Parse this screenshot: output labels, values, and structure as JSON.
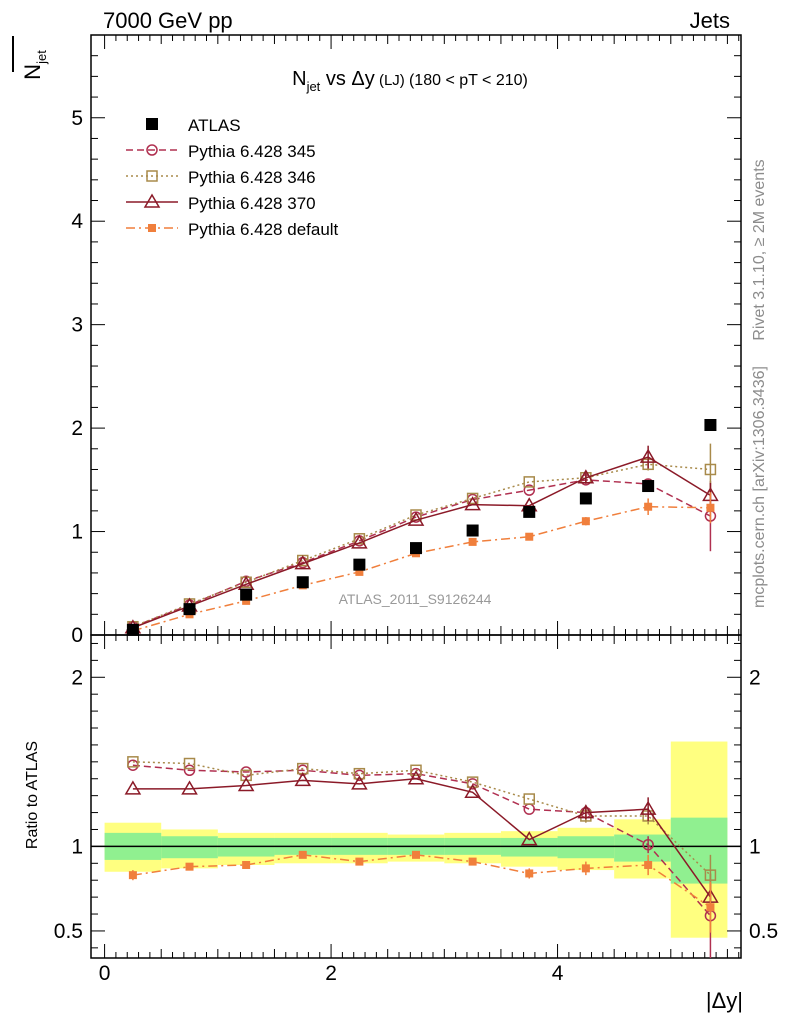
{
  "header": {
    "energy_label": "7000 GeV pp",
    "process_label": "Jets",
    "rivet_label": "Rivet 3.1.10, ≥ 2M events",
    "mcplots_label": "mcplots.cern.ch [arXiv:1306.3436]",
    "analysis_label": "ATLAS_2011_S9126244"
  },
  "chart_data": [
    {
      "type": "scatter",
      "title_main": "N",
      "title_sub": "jet",
      "title_rest": " vs Δy",
      "title_small": "(LJ)",
      "title_range": "(180 < pT < 210)",
      "ylabel_main": "N",
      "ylabel_sub": "jet",
      "xlabel": "|Δy|",
      "xlim": [
        -0.12,
        5.62
      ],
      "ylim": [
        0,
        5.8
      ],
      "yticks": [
        {
          "v": 0,
          "label": "0"
        },
        {
          "v": 1,
          "label": "1"
        },
        {
          "v": 2,
          "label": "2"
        },
        {
          "v": 3,
          "label": "3"
        },
        {
          "v": 4,
          "label": "4"
        },
        {
          "v": 5,
          "label": "5"
        }
      ],
      "x": [
        0.25,
        0.75,
        1.25,
        1.75,
        2.25,
        2.75,
        3.25,
        3.75,
        4.25,
        4.8,
        5.35
      ],
      "series": [
        {
          "name": "ATLAS",
          "style": "data",
          "color": "#000000",
          "values": [
            0.05,
            0.25,
            0.39,
            0.51,
            0.68,
            0.84,
            1.01,
            1.19,
            1.32,
            1.44,
            2.03
          ]
        },
        {
          "name": "Pythia 6.428 345",
          "style": "circle",
          "color": "#b03050",
          "values": [
            0.08,
            0.29,
            0.52,
            0.7,
            0.91,
            1.14,
            1.31,
            1.4,
            1.5,
            1.46,
            1.15
          ],
          "errors": [
            0,
            0,
            0,
            0,
            0,
            0,
            0,
            0,
            0.04,
            0.05,
            0.34
          ]
        },
        {
          "name": "Pythia 6.428 346",
          "style": "square",
          "color": "#a88a4a",
          "values": [
            0.08,
            0.3,
            0.51,
            0.72,
            0.93,
            1.16,
            1.32,
            1.48,
            1.52,
            1.65,
            1.6
          ],
          "errors": [
            0,
            0,
            0,
            0,
            0,
            0,
            0,
            0,
            0.04,
            0.06,
            0.25
          ]
        },
        {
          "name": "Pythia 6.428 370",
          "style": "triangle",
          "color": "#8b1a28",
          "values": [
            0.07,
            0.28,
            0.49,
            0.69,
            0.89,
            1.11,
            1.26,
            1.25,
            1.52,
            1.72,
            1.35
          ],
          "errors": [
            0,
            0,
            0,
            0,
            0,
            0,
            0,
            0,
            0.05,
            0.11,
            0.12
          ]
        },
        {
          "name": "Pythia 6.428 default",
          "style": "filledsquare",
          "color": "#f07f3c",
          "values": [
            0.04,
            0.2,
            0.33,
            0.48,
            0.61,
            0.79,
            0.9,
            0.95,
            1.1,
            1.24,
            1.23
          ],
          "errors": [
            0,
            0,
            0,
            0,
            0,
            0,
            0,
            0,
            0.04,
            0.08,
            0.15
          ]
        }
      ]
    },
    {
      "type": "scatter",
      "ylabel": "Ratio to ATLAS",
      "ylim": [
        0.34,
        2.25
      ],
      "yticks": [
        {
          "v": 0.5,
          "label": "0.5"
        },
        {
          "v": 1,
          "label": "1"
        },
        {
          "v": 2,
          "label": "2"
        }
      ],
      "xticks": [
        {
          "v": 0,
          "label": "0"
        },
        {
          "v": 2,
          "label": "2"
        },
        {
          "v": 4,
          "label": "4"
        }
      ],
      "reference_line": 1,
      "bands": {
        "edges": [
          0,
          0.5,
          1.0,
          1.5,
          2.0,
          2.5,
          3.0,
          3.5,
          4.0,
          4.5,
          5.0,
          5.5
        ],
        "yellow": [
          [
            0.85,
            1.14
          ],
          [
            0.87,
            1.1
          ],
          [
            0.89,
            1.08
          ],
          [
            0.9,
            1.08
          ],
          [
            0.9,
            1.08
          ],
          [
            0.91,
            1.07
          ],
          [
            0.9,
            1.08
          ],
          [
            0.88,
            1.09
          ],
          [
            0.86,
            1.11
          ],
          [
            0.81,
            1.16
          ],
          [
            0.46,
            1.62
          ]
        ],
        "green": [
          [
            0.92,
            1.08
          ],
          [
            0.93,
            1.06
          ],
          [
            0.94,
            1.05
          ],
          [
            0.95,
            1.05
          ],
          [
            0.95,
            1.05
          ],
          [
            0.95,
            1.05
          ],
          [
            0.95,
            1.05
          ],
          [
            0.94,
            1.05
          ],
          [
            0.93,
            1.06
          ],
          [
            0.91,
            1.07
          ],
          [
            0.78,
            1.17
          ]
        ]
      },
      "series": [
        {
          "name": "Pythia 6.428 345",
          "values": [
            1.48,
            1.45,
            1.44,
            1.45,
            1.42,
            1.43,
            1.37,
            1.22,
            1.2,
            1.01,
            0.59
          ],
          "errors": [
            0,
            0,
            0,
            0,
            0,
            0,
            0,
            0,
            0.04,
            0.05,
            0.25
          ]
        },
        {
          "name": "Pythia 6.428 346",
          "values": [
            1.5,
            1.49,
            1.42,
            1.46,
            1.43,
            1.45,
            1.38,
            1.28,
            1.18,
            1.18,
            0.83
          ],
          "errors": [
            0,
            0,
            0,
            0,
            0,
            0,
            0,
            0,
            0.04,
            0.05,
            0.12
          ]
        },
        {
          "name": "Pythia 6.428 370",
          "values": [
            1.34,
            1.34,
            1.36,
            1.39,
            1.37,
            1.4,
            1.32,
            1.04,
            1.2,
            1.22,
            0.7
          ],
          "errors": [
            0,
            0,
            0,
            0,
            0,
            0,
            0,
            0,
            0.04,
            0.07,
            0.08
          ]
        },
        {
          "name": "Pythia 6.428 default",
          "values": [
            0.83,
            0.88,
            0.89,
            0.95,
            0.91,
            0.95,
            0.91,
            0.84,
            0.87,
            0.89,
            0.64
          ],
          "errors": [
            0.03,
            0,
            0,
            0,
            0,
            0,
            0.02,
            0.03,
            0.04,
            0.06,
            0.15
          ]
        }
      ]
    }
  ]
}
